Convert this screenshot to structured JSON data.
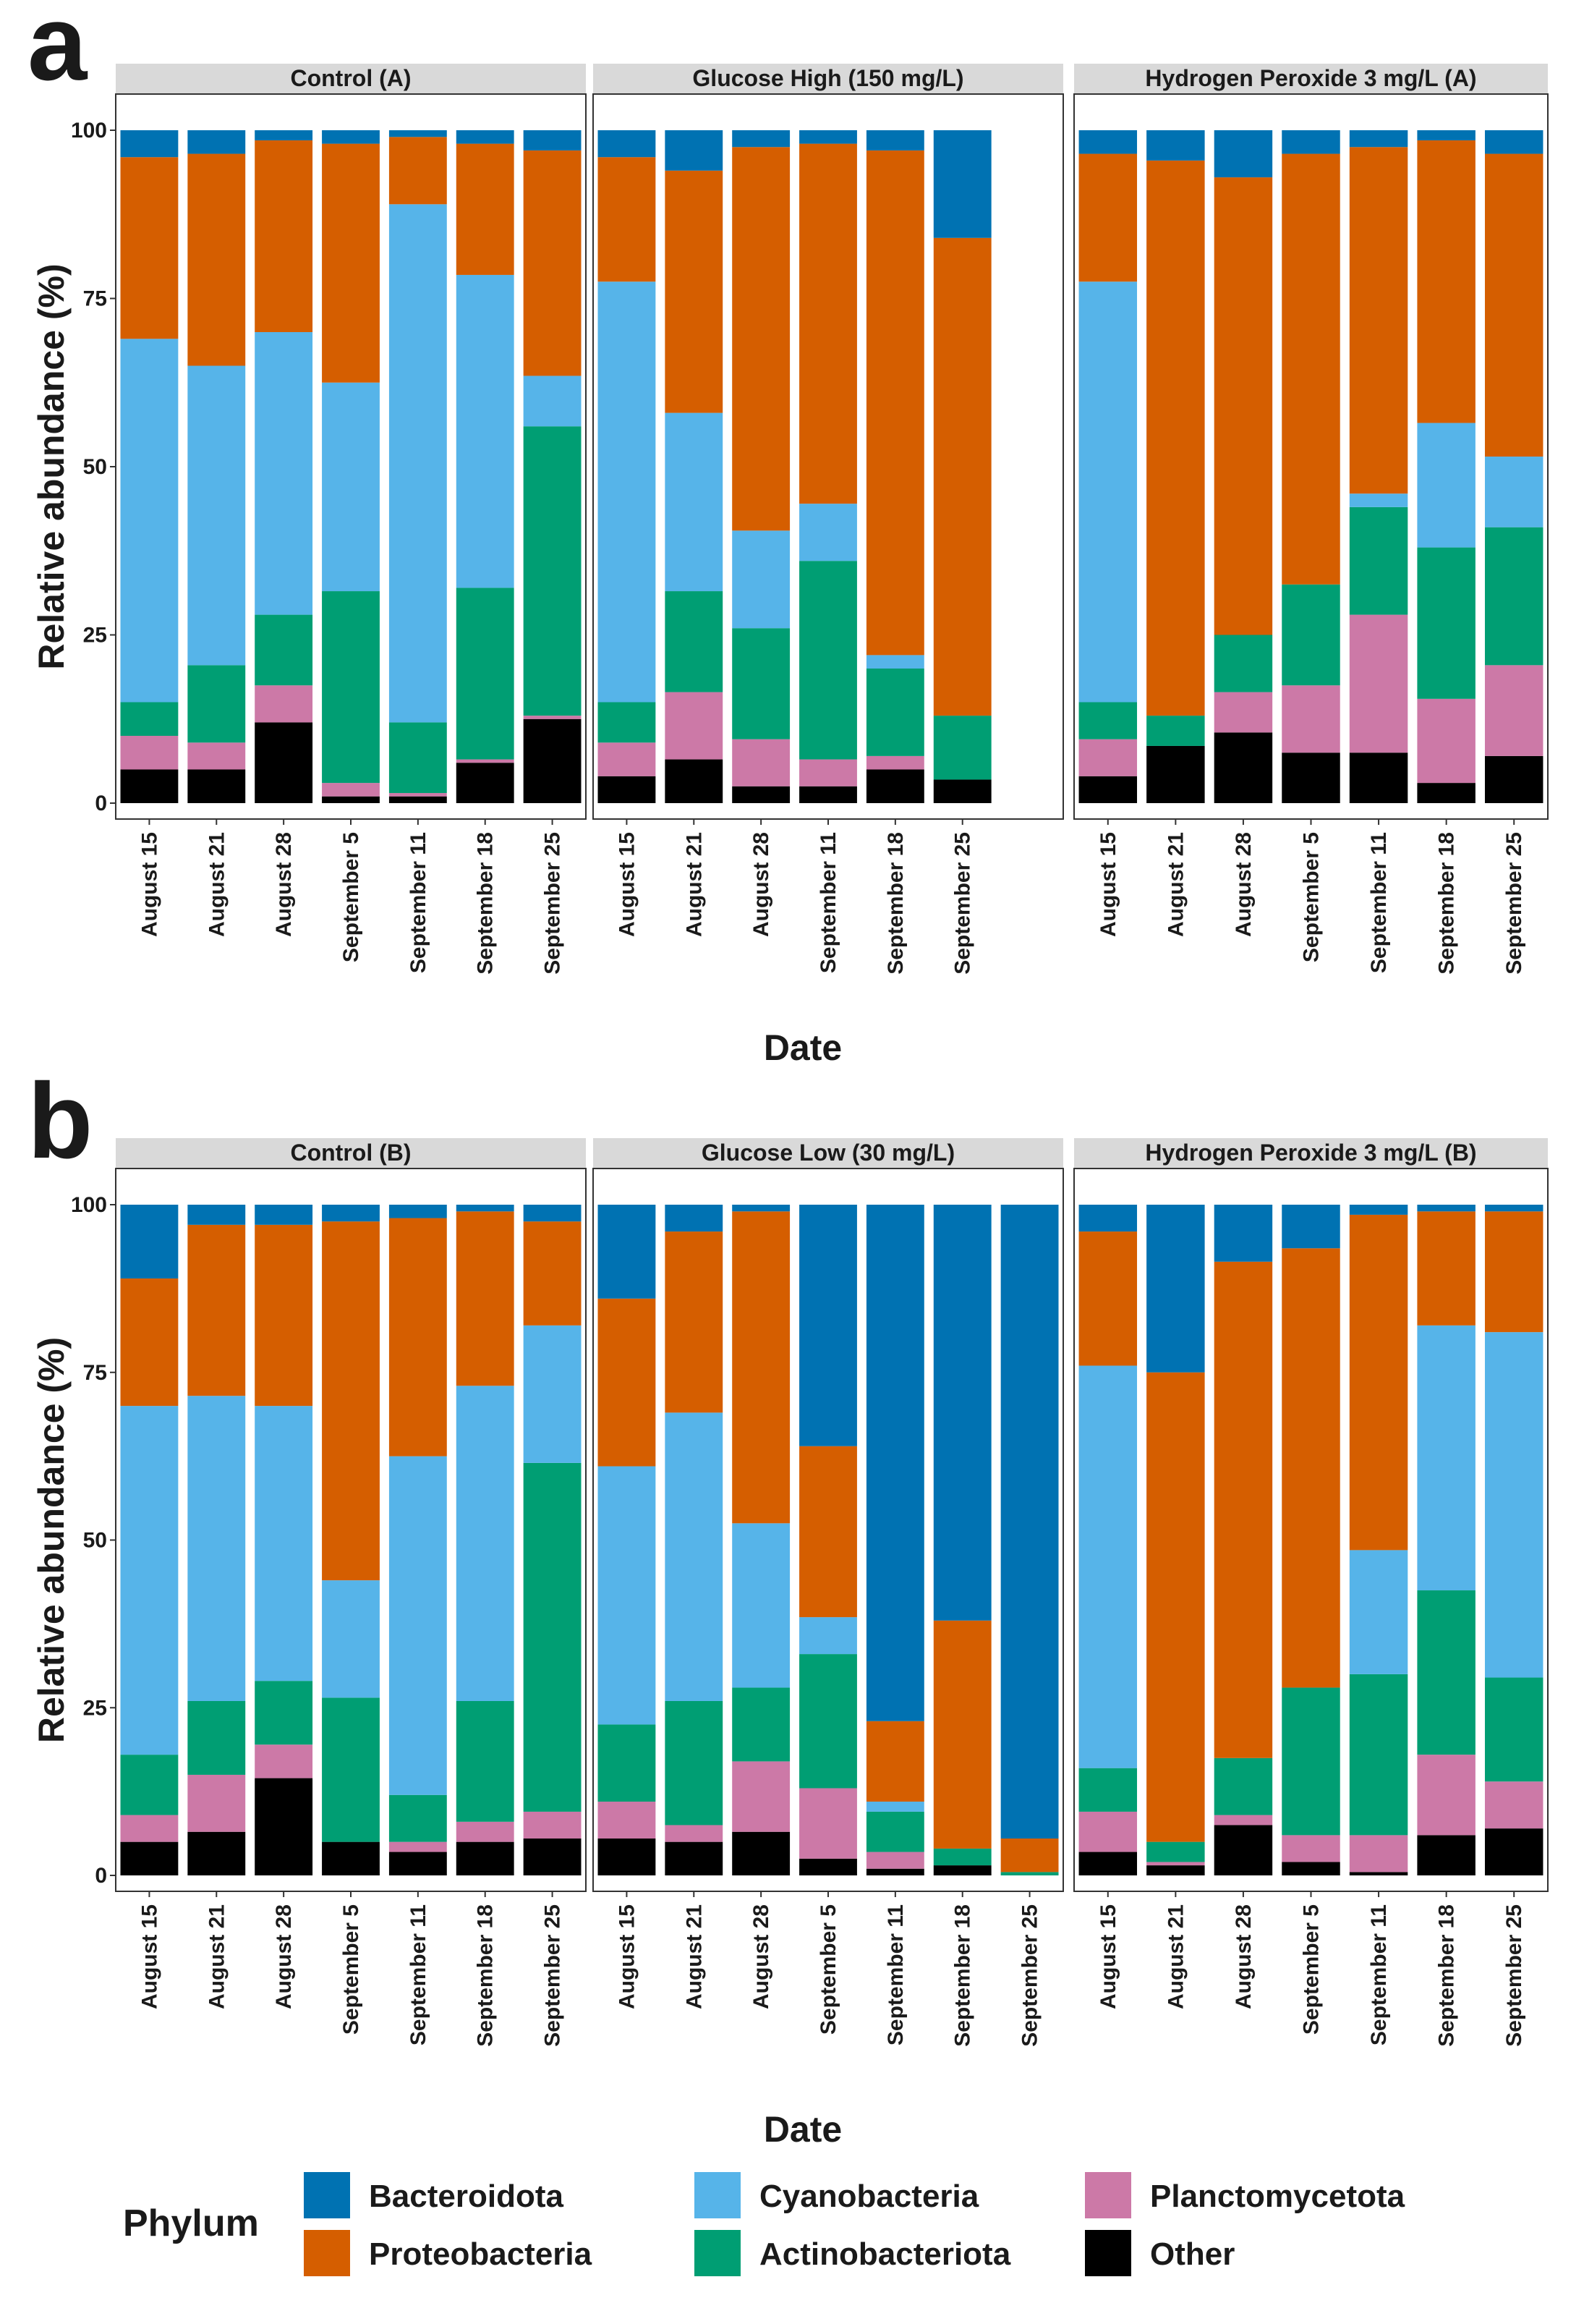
{
  "figure": {
    "legend": {
      "title": "Phylum",
      "items": [
        {
          "name": "Bacteroidota",
          "color": "#0072B2"
        },
        {
          "name": "Cyanobacteria",
          "color": "#56B4E9"
        },
        {
          "name": "Planctomycetota",
          "color": "#CC79A7"
        },
        {
          "name": "Proteobacteria",
          "color": "#D55E00"
        },
        {
          "name": "Actinobacteriota",
          "color": "#009E73"
        },
        {
          "name": "Other",
          "color": "#000000"
        }
      ]
    }
  },
  "chart_data": [
    {
      "type": "bar",
      "stacked": true,
      "panel_letter": "a",
      "xlabel": "Date",
      "ylabel": "Relative abundance (%)",
      "ylim": [
        0,
        100
      ],
      "yticks": [
        0,
        25,
        50,
        75,
        100
      ],
      "stack_order": [
        "Other",
        "Planctomycetota",
        "Actinobacteriota",
        "Cyanobacteria",
        "Proteobacteria",
        "Bacteroidota"
      ],
      "facets": [
        {
          "title": "Control (A)",
          "categories": [
            "August 15",
            "August 21",
            "August 28",
            "September 5",
            "September 11",
            "September 18",
            "September 25"
          ],
          "series": [
            {
              "name": "Other",
              "values": [
                5,
                5,
                12,
                1,
                1,
                6,
                12.5
              ]
            },
            {
              "name": "Planctomycetota",
              "values": [
                5,
                4,
                5.5,
                2,
                0.5,
                0.5,
                0.5
              ]
            },
            {
              "name": "Actinobacteriota",
              "values": [
                5,
                11.5,
                10.5,
                28.5,
                10.5,
                25.5,
                43
              ]
            },
            {
              "name": "Cyanobacteria",
              "values": [
                54,
                44.5,
                42,
                31,
                77,
                46.5,
                7.5
              ]
            },
            {
              "name": "Proteobacteria",
              "values": [
                27,
                31.5,
                28.5,
                35.5,
                10,
                19.5,
                33.5
              ]
            },
            {
              "name": "Bacteroidota",
              "values": [
                4,
                3.5,
                1.5,
                2,
                1,
                2,
                3
              ]
            }
          ]
        },
        {
          "title": "Glucose High (150 mg/L)",
          "categories": [
            "August 15",
            "August 21",
            "August 28",
            "September 11",
            "September 18",
            "September 25"
          ],
          "series": [
            {
              "name": "Other",
              "values": [
                4,
                6.5,
                2.5,
                2.5,
                5,
                3.5
              ]
            },
            {
              "name": "Planctomycetota",
              "values": [
                5,
                10,
                7,
                4,
                2,
                0
              ]
            },
            {
              "name": "Actinobacteriota",
              "values": [
                6,
                15,
                16.5,
                29.5,
                13,
                9.5
              ]
            },
            {
              "name": "Cyanobacteria",
              "values": [
                62.5,
                26.5,
                14.5,
                8.5,
                2,
                0
              ]
            },
            {
              "name": "Proteobacteria",
              "values": [
                18.5,
                36,
                57,
                53.5,
                75,
                71
              ]
            },
            {
              "name": "Bacteroidota",
              "values": [
                4,
                6,
                2.5,
                2,
                3,
                16
              ]
            }
          ]
        },
        {
          "title": "Hydrogen Peroxide 3 mg/L (A)",
          "categories": [
            "August 15",
            "August 21",
            "August 28",
            "September 5",
            "September 11",
            "September 18",
            "September 25"
          ],
          "series": [
            {
              "name": "Other",
              "values": [
                4,
                8.5,
                10.5,
                7.5,
                7.5,
                3,
                7
              ]
            },
            {
              "name": "Planctomycetota",
              "values": [
                5.5,
                0,
                6,
                10,
                20.5,
                12.5,
                13.5
              ]
            },
            {
              "name": "Actinobacteriota",
              "values": [
                5.5,
                4.5,
                8.5,
                15,
                16,
                22.5,
                20.5
              ]
            },
            {
              "name": "Cyanobacteria",
              "values": [
                62.5,
                0,
                0,
                0,
                2,
                18.5,
                10.5
              ]
            },
            {
              "name": "Proteobacteria",
              "values": [
                19,
                82.5,
                68,
                64,
                51.5,
                42,
                45
              ]
            },
            {
              "name": "Bacteroidota",
              "values": [
                3.5,
                4.5,
                7,
                3.5,
                2.5,
                1.5,
                3.5
              ]
            }
          ]
        }
      ]
    },
    {
      "type": "bar",
      "stacked": true,
      "panel_letter": "b",
      "xlabel": "Date",
      "ylabel": "Relative abundance (%)",
      "ylim": [
        0,
        100
      ],
      "yticks": [
        0,
        25,
        50,
        75,
        100
      ],
      "stack_order": [
        "Other",
        "Planctomycetota",
        "Actinobacteriota",
        "Cyanobacteria",
        "Proteobacteria",
        "Bacteroidota"
      ],
      "facets": [
        {
          "title": "Control (B)",
          "categories": [
            "August 15",
            "August 21",
            "August 28",
            "September 5",
            "September 11",
            "September 18",
            "September 25"
          ],
          "series": [
            {
              "name": "Other",
              "values": [
                5,
                6.5,
                14.5,
                5,
                3.5,
                5,
                5.5
              ]
            },
            {
              "name": "Planctomycetota",
              "values": [
                4,
                8.5,
                5,
                0,
                1.5,
                3,
                4
              ]
            },
            {
              "name": "Actinobacteriota",
              "values": [
                9,
                11,
                9.5,
                21.5,
                7,
                18,
                52
              ]
            },
            {
              "name": "Cyanobacteria",
              "values": [
                52,
                45.5,
                41,
                17.5,
                50.5,
                47,
                20.5
              ]
            },
            {
              "name": "Proteobacteria",
              "values": [
                19,
                25.5,
                27,
                53.5,
                35.5,
                26,
                15.5
              ]
            },
            {
              "name": "Bacteroidota",
              "values": [
                11,
                3,
                3,
                2.5,
                2,
                1,
                2.5
              ]
            }
          ]
        },
        {
          "title": "Glucose Low (30 mg/L)",
          "categories": [
            "August 15",
            "August 21",
            "August 28",
            "September 5",
            "September 11",
            "September 18",
            "September 25"
          ],
          "series": [
            {
              "name": "Other",
              "values": [
                5.5,
                5,
                6.5,
                2.5,
                1,
                1.5,
                0
              ]
            },
            {
              "name": "Planctomycetota",
              "values": [
                5.5,
                2.5,
                10.5,
                10.5,
                2.5,
                0,
                0
              ]
            },
            {
              "name": "Actinobacteriota",
              "values": [
                11.5,
                18.5,
                11,
                20,
                6,
                2.5,
                0.5
              ]
            },
            {
              "name": "Cyanobacteria",
              "values": [
                38.5,
                43,
                24.5,
                5.5,
                1.5,
                0,
                0
              ]
            },
            {
              "name": "Proteobacteria",
              "values": [
                25,
                27,
                46.5,
                25.5,
                12,
                34,
                5
              ]
            },
            {
              "name": "Bacteroidota",
              "values": [
                14,
                4,
                1,
                36,
                77,
                62,
                94.5
              ]
            }
          ]
        },
        {
          "title": "Hydrogen Peroxide 3 mg/L (B)",
          "categories": [
            "August 15",
            "August 21",
            "August 28",
            "September 5",
            "September 11",
            "September 18",
            "September 25"
          ],
          "series": [
            {
              "name": "Other",
              "values": [
                3.5,
                1.5,
                7.5,
                2,
                0.5,
                6,
                7
              ]
            },
            {
              "name": "Planctomycetota",
              "values": [
                6,
                0.5,
                1.5,
                4,
                5.5,
                12,
                7
              ]
            },
            {
              "name": "Actinobacteriota",
              "values": [
                6.5,
                3,
                8.5,
                22,
                24,
                24.5,
                15.5
              ]
            },
            {
              "name": "Cyanobacteria",
              "values": [
                60,
                0,
                0,
                0,
                18.5,
                39.5,
                51.5
              ]
            },
            {
              "name": "Proteobacteria",
              "values": [
                20,
                70,
                74,
                65.5,
                50,
                17,
                18
              ]
            },
            {
              "name": "Bacteroidota",
              "values": [
                4,
                25,
                8.5,
                6.5,
                1.5,
                1,
                1
              ]
            }
          ]
        }
      ]
    }
  ]
}
